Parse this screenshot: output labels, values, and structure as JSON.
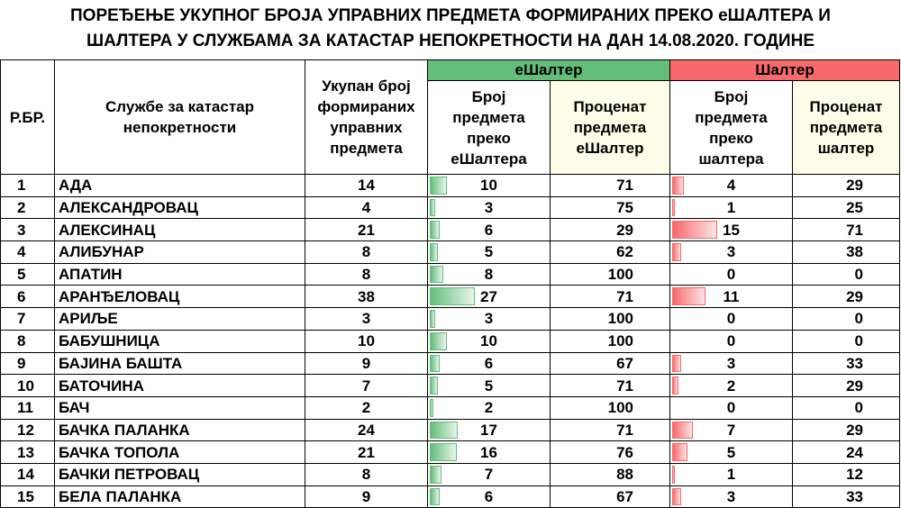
{
  "title_line1": "ПОРЕЂЕЊЕ УКУПНОГ БРОЈА УПРАВНИХ ПРЕДМЕТА ФОРМИРАНИХ ПРЕКО еШАЛТЕРА И",
  "title_line2": "ШАЛТЕРА У СЛУЖБАМА ЗА КАТАСТАР НЕПОКРЕТНОСТИ НА ДАН 14.08.2020. ГОДИНЕ",
  "colors": {
    "eshalter_green": "#63be7b",
    "shalter_red": "#f8696b",
    "pct_bg": "#fffde7"
  },
  "header": {
    "rbr": "Р.БР.",
    "office": "Службе за катастар непокретности",
    "total": "Укупан број формираних управних предмета",
    "group_e": "еШалтер",
    "group_s": "Шалтер",
    "e_count": "Број предмета преко еШалтера",
    "e_pct": "Проценат предмета еШалтер",
    "s_count": "Број предмета преко шалтера",
    "s_pct": "Проценат предмета шалтер"
  },
  "rows": [
    {
      "no": "1",
      "name": "АДА",
      "total": "14",
      "e": "10",
      "ep": "71",
      "s": "4",
      "sp": "29"
    },
    {
      "no": "2",
      "name": "АЛЕКСАНДРОВАЦ",
      "total": "4",
      "e": "3",
      "ep": "75",
      "s": "1",
      "sp": "25"
    },
    {
      "no": "3",
      "name": "АЛЕКСИНАЦ",
      "total": "21",
      "e": "6",
      "ep": "29",
      "s": "15",
      "sp": "71"
    },
    {
      "no": "4",
      "name": "АЛИБУНАР",
      "total": "8",
      "e": "5",
      "ep": "62",
      "s": "3",
      "sp": "38"
    },
    {
      "no": "5",
      "name": "АПАТИН",
      "total": "8",
      "e": "8",
      "ep": "100",
      "s": "0",
      "sp": "0"
    },
    {
      "no": "6",
      "name": "АРАНЂЕЛОВАЦ",
      "total": "38",
      "e": "27",
      "ep": "71",
      "s": "11",
      "sp": "29"
    },
    {
      "no": "7",
      "name": "АРИЉЕ",
      "total": "3",
      "e": "3",
      "ep": "100",
      "s": "0",
      "sp": "0"
    },
    {
      "no": "8",
      "name": "БАБУШНИЦА",
      "total": "10",
      "e": "10",
      "ep": "100",
      "s": "0",
      "sp": "0"
    },
    {
      "no": "9",
      "name": "БАЈИНА БАШТА",
      "total": "9",
      "e": "6",
      "ep": "67",
      "s": "3",
      "sp": "33"
    },
    {
      "no": "10",
      "name": "БАТОЧИНА",
      "total": "7",
      "e": "5",
      "ep": "71",
      "s": "2",
      "sp": "29"
    },
    {
      "no": "11",
      "name": "БАЧ",
      "total": "2",
      "e": "2",
      "ep": "100",
      "s": "0",
      "sp": "0"
    },
    {
      "no": "12",
      "name": "БАЧКА ПАЛАНКА",
      "total": "24",
      "e": "17",
      "ep": "71",
      "s": "7",
      "sp": "29"
    },
    {
      "no": "13",
      "name": "БАЧКА ТОПОЛА",
      "total": "21",
      "e": "16",
      "ep": "76",
      "s": "5",
      "sp": "24"
    },
    {
      "no": "14",
      "name": "БАЧКИ ПЕТРОВАЦ",
      "total": "8",
      "e": "7",
      "ep": "88",
      "s": "1",
      "sp": "12"
    },
    {
      "no": "15",
      "name": "БЕЛА ПАЛАНКА",
      "total": "9",
      "e": "6",
      "ep": "67",
      "s": "3",
      "sp": "33"
    }
  ]
}
